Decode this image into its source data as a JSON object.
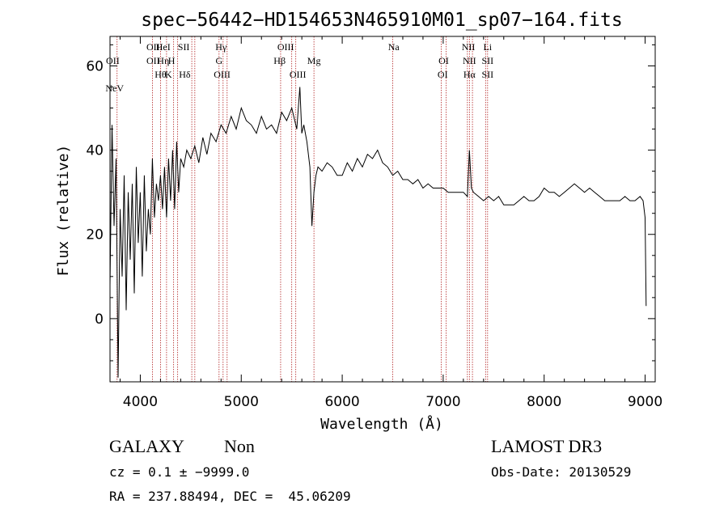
{
  "chart_data": {
    "type": "line",
    "title": "spec−56442−HD154653N465910M01_sp07−164.fits",
    "xlabel": "Wavelength (Å)",
    "ylabel": "Flux (relative)",
    "xlim": [
      3700,
      9100
    ],
    "ylim": [
      -15,
      67
    ],
    "xticks": [
      4000,
      5000,
      6000,
      7000,
      8000,
      9000
    ],
    "yticks": [
      0,
      20,
      40,
      60
    ],
    "grid": false,
    "series": [
      {
        "x": [
          3700,
          3720,
          3740,
          3760,
          3780,
          3800,
          3820,
          3840,
          3860,
          3880,
          3900,
          3920,
          3940,
          3960,
          3980,
          4000,
          4020,
          4040,
          4060,
          4080,
          4100,
          4120,
          4140,
          4160,
          4180,
          4200,
          4220,
          4240,
          4260,
          4280,
          4300,
          4320,
          4340,
          4360,
          4380,
          4400,
          4430,
          4460,
          4500,
          4540,
          4580,
          4620,
          4660,
          4700,
          4750,
          4800,
          4850,
          4900,
          4950,
          5000,
          5050,
          5100,
          5150,
          5200,
          5250,
          5300,
          5350,
          5400,
          5450,
          5500,
          5550,
          5580,
          5600,
          5620,
          5650,
          5680,
          5700,
          5720,
          5740,
          5760,
          5800,
          5850,
          5900,
          5950,
          6000,
          6050,
          6100,
          6150,
          6200,
          6250,
          6300,
          6350,
          6400,
          6450,
          6500,
          6550,
          6600,
          6650,
          6700,
          6750,
          6800,
          6850,
          6900,
          6950,
          7000,
          7050,
          7100,
          7150,
          7200,
          7240,
          7260,
          7280,
          7300,
          7350,
          7400,
          7450,
          7500,
          7550,
          7600,
          7650,
          7700,
          7750,
          7800,
          7850,
          7900,
          7950,
          8000,
          8050,
          8100,
          8150,
          8200,
          8250,
          8300,
          8350,
          8400,
          8450,
          8500,
          8550,
          8600,
          8650,
          8700,
          8750,
          8800,
          8850,
          8900,
          8950,
          8980,
          9000,
          9010
        ],
        "y": [
          8,
          46,
          22,
          38,
          -14,
          26,
          10,
          34,
          2,
          30,
          14,
          32,
          6,
          36,
          18,
          30,
          10,
          34,
          16,
          26,
          20,
          38,
          24,
          32,
          28,
          34,
          26,
          36,
          24,
          38,
          28,
          40,
          26,
          42,
          30,
          38,
          36,
          40,
          38,
          41,
          37,
          43,
          39,
          44,
          42,
          46,
          44,
          48,
          45,
          50,
          47,
          46,
          44,
          48,
          45,
          46,
          44,
          49,
          47,
          50,
          45,
          55,
          44,
          46,
          42,
          36,
          22,
          30,
          34,
          36,
          35,
          37,
          36,
          34,
          34,
          37,
          35,
          38,
          36,
          39,
          38,
          40,
          37,
          36,
          34,
          35,
          33,
          33,
          32,
          33,
          31,
          32,
          31,
          31,
          31,
          30,
          30,
          30,
          30,
          29,
          40,
          31,
          30,
          29,
          28,
          29,
          28,
          29,
          27,
          27,
          27,
          28,
          29,
          28,
          28,
          29,
          31,
          30,
          30,
          29,
          30,
          31,
          32,
          31,
          30,
          31,
          30,
          29,
          28,
          28,
          28,
          28,
          29,
          28,
          28,
          29,
          28,
          24,
          3
        ]
      }
    ],
    "line_markers": [
      {
        "label": "NeV",
        "x": 3746,
        "row": 3
      },
      {
        "label": "OII",
        "x": 3727,
        "row": 1
      },
      {
        "label": "OII",
        "x": 4127,
        "row": 0
      },
      {
        "label": "OII",
        "x": 4127,
        "row": 1
      },
      {
        "label": "HeI",
        "x": 4227,
        "row": 0
      },
      {
        "label": "Hη",
        "x": 4227,
        "row": 1
      },
      {
        "label": "Hθ",
        "x": 4200,
        "row": 2
      },
      {
        "label": "H",
        "x": 4310,
        "row": 1
      },
      {
        "label": "K",
        "x": 4280,
        "row": 2
      },
      {
        "label": "SII",
        "x": 4430,
        "row": 0
      },
      {
        "label": "Hδ",
        "x": 4440,
        "row": 2
      },
      {
        "label": "Hγ",
        "x": 4800,
        "row": 0
      },
      {
        "label": "G",
        "x": 4780,
        "row": 1
      },
      {
        "label": "OIII",
        "x": 4810,
        "row": 2
      },
      {
        "label": "OIII",
        "x": 5440,
        "row": 0
      },
      {
        "label": "Hβ",
        "x": 5380,
        "row": 1
      },
      {
        "label": "OIII",
        "x": 5560,
        "row": 2
      },
      {
        "label": "Mg",
        "x": 5720,
        "row": 1
      },
      {
        "label": "Na",
        "x": 6510,
        "row": 0
      },
      {
        "label": "OI",
        "x": 7005,
        "row": 1
      },
      {
        "label": "OI",
        "x": 6995,
        "row": 2
      },
      {
        "label": "NII",
        "x": 7250,
        "row": 0
      },
      {
        "label": "Li",
        "x": 7440,
        "row": 0
      },
      {
        "label": "NII",
        "x": 7260,
        "row": 1
      },
      {
        "label": "SII",
        "x": 7440,
        "row": 1
      },
      {
        "label": "Hα",
        "x": 7260,
        "row": 2
      },
      {
        "label": "SII",
        "x": 7440,
        "row": 2
      }
    ],
    "marker_lines_x": [
      3770,
      4120,
      4200,
      4260,
      4330,
      4370,
      4510,
      4540,
      4780,
      4820,
      4860,
      5390,
      5500,
      5540,
      5720,
      6500,
      6980,
      7030,
      7240,
      7260,
      7290,
      7420,
      7440
    ],
    "colors": {
      "spectrum": "#000000",
      "marker_lines": "#b22222",
      "axes": "#000000"
    }
  },
  "footer": {
    "object_class": "GALAXY",
    "subclass": "Non",
    "survey": "LAMOST DR3",
    "cz_line": "cz = 0.1 ± −9999.0",
    "obs_date": "Obs-Date: 20130529",
    "coords_line": "RA = 237.88494, DEC =  45.06209"
  }
}
